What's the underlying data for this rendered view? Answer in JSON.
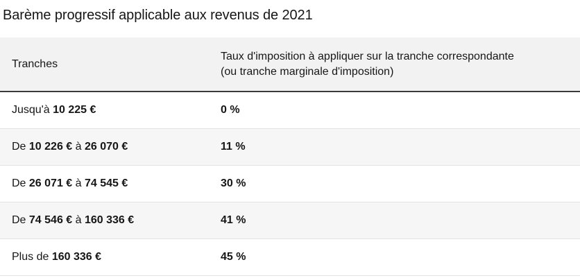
{
  "title": "Barème progressif applicable aux revenus de 2021",
  "table": {
    "headers": {
      "tranches": "Tranches",
      "rate_line1": "Taux d'imposition à appliquer sur la tranche correspondante",
      "rate_line2": "(ou tranche marginale d'imposition)"
    },
    "rows": [
      {
        "prefix": "Jusqu'à ",
        "from": "10 225 €",
        "sep": "",
        "to": "",
        "rate": "0 %"
      },
      {
        "prefix": "De ",
        "from": "10 226 €",
        "sep": " à  ",
        "to": "26 070 €",
        "rate": "11 %"
      },
      {
        "prefix": "De  ",
        "from": "26 071 €",
        "sep": " à  ",
        "to": "74 545 €",
        "rate": "30 %"
      },
      {
        "prefix": "De  ",
        "from": "74 546 €",
        "sep": " à ",
        "to": "160 336 €",
        "rate": "41 %"
      },
      {
        "prefix": "Plus de ",
        "from": "160 336 €",
        "sep": "",
        "to": "",
        "rate": "45 %"
      }
    ]
  }
}
